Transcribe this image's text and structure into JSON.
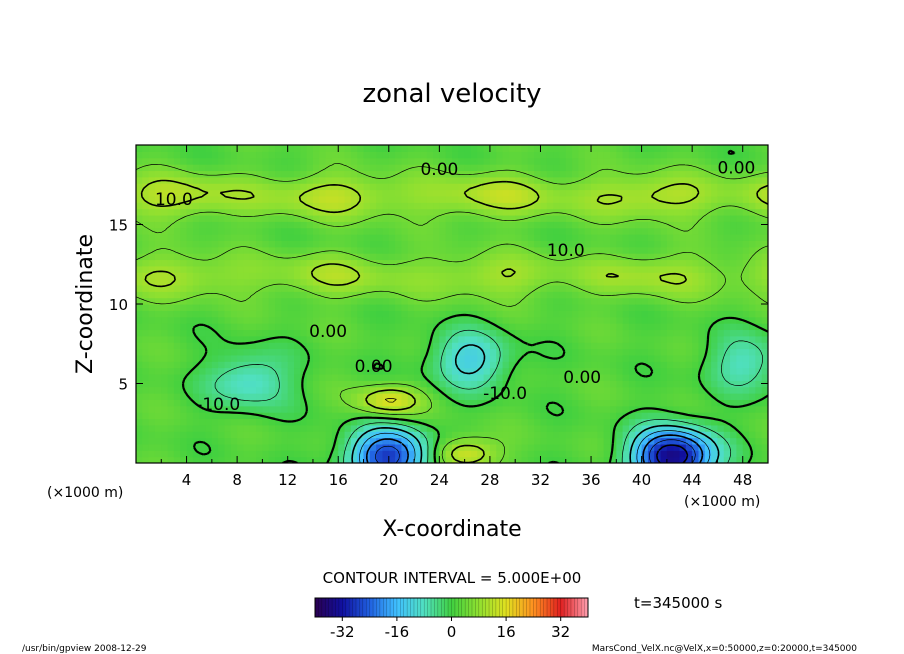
{
  "chart_data": {
    "type": "heatmap",
    "title": "zonal velocity",
    "xlabel": "X-coordinate",
    "ylabel": "Z-coordinate",
    "x_unit_left": "(×1000 m)",
    "x_unit_right": "(×1000 m)",
    "xlim": [
      0,
      50
    ],
    "ylim": [
      0,
      20
    ],
    "xticks": [
      4,
      8,
      12,
      16,
      20,
      24,
      28,
      32,
      36,
      40,
      44,
      48
    ],
    "yticks": [
      5,
      10,
      15
    ],
    "contour_interval_label": "CONTOUR INTERVAL = 5.000E+00",
    "time_label": "t=345000 s",
    "colorbar": {
      "range": [
        -40,
        40
      ],
      "ticks": [
        -32,
        -16,
        0,
        16,
        32
      ],
      "colors": [
        "#2a0050",
        "#1010a0",
        "#2060e0",
        "#40c0ff",
        "#50e0c0",
        "#40d040",
        "#90e030",
        "#e0e020",
        "#ff9020",
        "#e02020",
        "#ffa0b0"
      ]
    },
    "contour_labels": [
      {
        "text": "0.00",
        "x": 24,
        "y": 18.5
      },
      {
        "text": "0.00",
        "x": 47.5,
        "y": 18.6
      },
      {
        "text": "10.0",
        "x": 3.0,
        "y": 16.6
      },
      {
        "text": "10.0",
        "x": 34.0,
        "y": 13.4
      },
      {
        "text": "0.00",
        "x": 15.2,
        "y": 8.3
      },
      {
        "text": "0.00",
        "x": 18.8,
        "y": 6.1
      },
      {
        "text": "0.00",
        "x": 35.3,
        "y": 5.4
      },
      {
        "text": "-10.0",
        "x": 6.5,
        "y": 3.7
      },
      {
        "text": "-10.0",
        "x": 29.2,
        "y": 4.4
      }
    ],
    "features": [
      {
        "kind": "jet",
        "z": 16.8,
        "value": 10
      },
      {
        "kind": "jet",
        "z": 11.8,
        "value": 8
      },
      {
        "kind": "low",
        "x": 9.0,
        "z": 5.2,
        "value": -12
      },
      {
        "kind": "low",
        "x": 26.5,
        "z": 6.5,
        "value": -14
      },
      {
        "kind": "low",
        "x": 20.0,
        "z": 0.4,
        "value": -30
      },
      {
        "kind": "low",
        "x": 42.5,
        "z": 0.4,
        "value": -38
      },
      {
        "kind": "low",
        "x": 48.3,
        "z": 6.3,
        "value": -10
      },
      {
        "kind": "high",
        "x": 20.0,
        "z": 3.9,
        "value": 14
      },
      {
        "kind": "high",
        "x": 26.0,
        "z": 0.6,
        "value": 14
      }
    ]
  },
  "footer": {
    "left": "/usr/bin/gpview   2008-12-29",
    "right": "MarsCond_VelX.nc@VelX,x=0:50000,z=0:20000,t=345000"
  }
}
